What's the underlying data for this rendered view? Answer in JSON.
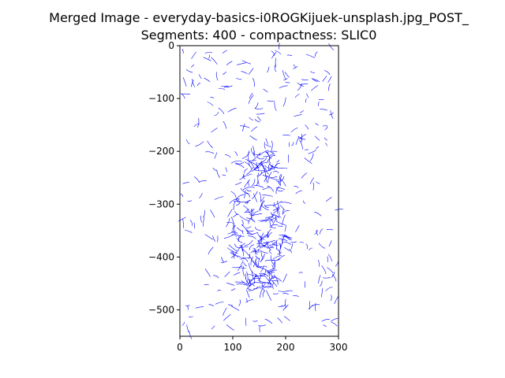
{
  "chart_data": {
    "type": "line",
    "title_lines": [
      "Merged Image - everyday-basics-i0ROGKijuek-unsplash.jpg_POST_",
      "Segments: 400 - compactness: SLIC0"
    ],
    "xlabel": "",
    "ylabel": "",
    "xlim": [
      0,
      300
    ],
    "ylim": [
      -550,
      0
    ],
    "x_ticks": [
      0,
      100,
      200,
      300
    ],
    "y_ticks": [
      0,
      -100,
      -200,
      -300,
      -400,
      -500
    ],
    "x_tick_labels": [
      "0",
      "100",
      "200",
      "300"
    ],
    "y_tick_labels": [
      "0",
      "−100",
      "−200",
      "−300",
      "−400",
      "−500"
    ],
    "grid": false,
    "series_color": "#0000ff"
  }
}
